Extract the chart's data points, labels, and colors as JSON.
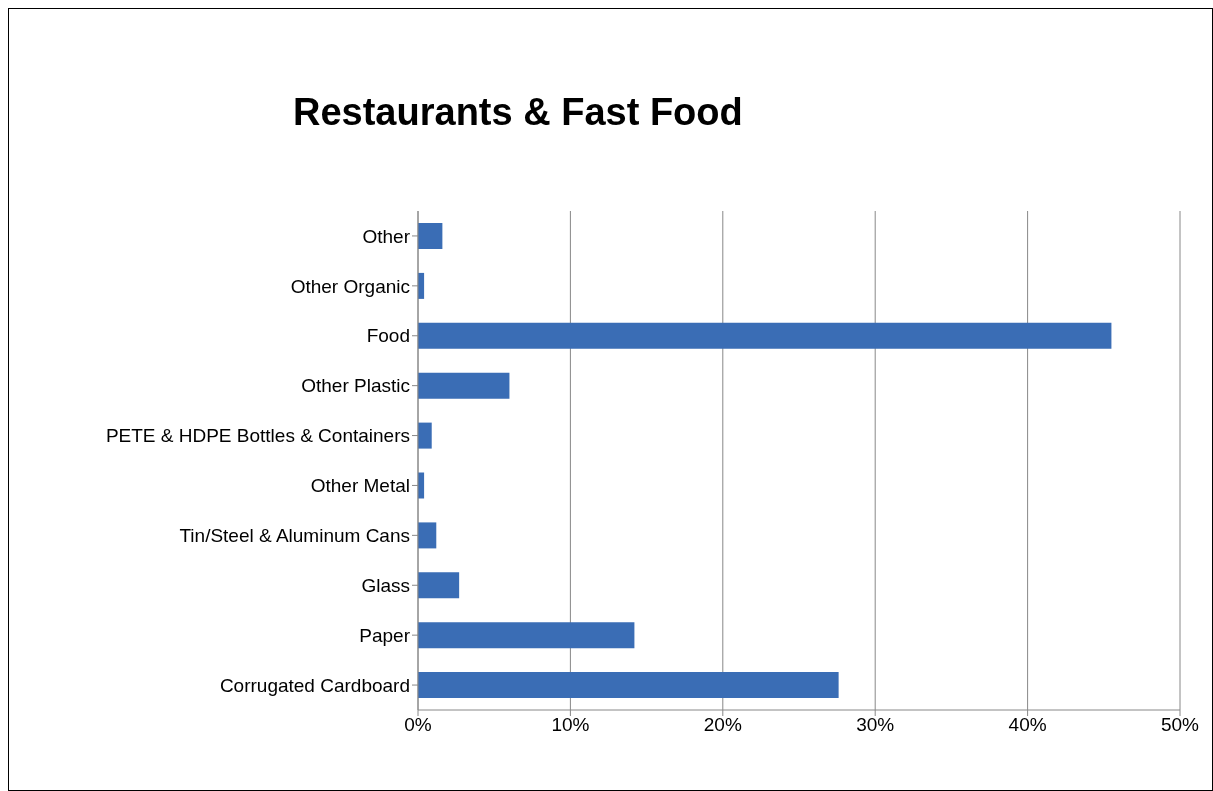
{
  "chart_data": {
    "type": "bar",
    "orientation": "horizontal",
    "title": "Restaurants & Fast Food",
    "categories": [
      "Other",
      "Other Organic",
      "Food",
      "Other Plastic",
      "PETE & HDPE Bottles & Containers",
      "Other Metal",
      "Tin/Steel & Aluminum Cans",
      "Glass",
      "Paper",
      "Corrugated Cardboard"
    ],
    "values": [
      1.6,
      0.4,
      45.5,
      6.0,
      0.9,
      0.4,
      1.2,
      2.7,
      14.2,
      27.6
    ],
    "color": "#3a6db5",
    "xlim": [
      0,
      50
    ],
    "xticks": [
      {
        "value": 0,
        "label": "0%"
      },
      {
        "value": 10,
        "label": "10%"
      },
      {
        "value": 20,
        "label": "20%"
      },
      {
        "value": 30,
        "label": "30%"
      },
      {
        "value": 40,
        "label": "40%"
      },
      {
        "value": 50,
        "label": "50%"
      }
    ],
    "grid": "x",
    "legend": false
  }
}
